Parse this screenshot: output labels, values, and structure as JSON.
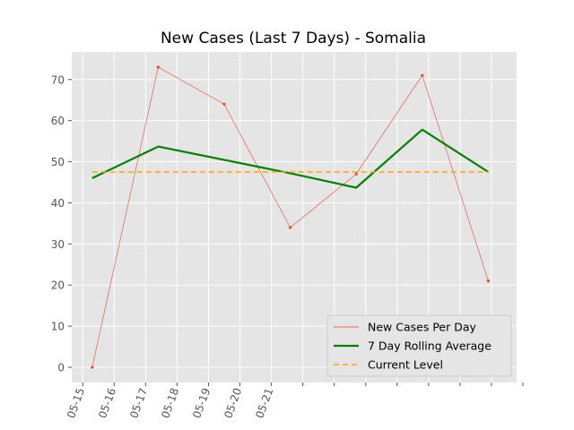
{
  "chart_data": {
    "type": "line",
    "title": "New Cases (Last 7 Days) - Somalia",
    "xlabel": "",
    "ylabel": "",
    "x_tick_labels": [
      "05-15",
      "05-16",
      "05-17",
      "05-18",
      "05-19",
      "05-20",
      "05-21"
    ],
    "x_tick_count": 15,
    "y_ticks": [
      0,
      10,
      20,
      30,
      40,
      50,
      60,
      70
    ],
    "ylim": [
      -3.7,
      76.7
    ],
    "xlim": [
      -0.35,
      13.8
    ],
    "grid": true,
    "legend_position": "lower right",
    "series": [
      {
        "name": "New Cases Per Day",
        "style": "thin-line-with-markers",
        "color": "#e24a33",
        "x": [
          0.3,
          2.4,
          4.5,
          6.6,
          8.7,
          10.8,
          12.9
        ],
        "values": [
          0,
          73,
          64,
          34,
          47,
          71,
          21
        ]
      },
      {
        "name": "7 Day Rolling Average",
        "style": "thick-line",
        "color": "#008000",
        "x": [
          0.3,
          2.4,
          6.6,
          8.7,
          10.8,
          12.9
        ],
        "values": [
          46,
          53.7,
          47.2,
          43.7,
          57.8,
          47.5
        ]
      },
      {
        "name": "Current Level",
        "style": "dashed-line",
        "color": "#ffa500",
        "x": [
          0.3,
          12.9
        ],
        "values": [
          47.5,
          47.5
        ]
      }
    ]
  }
}
